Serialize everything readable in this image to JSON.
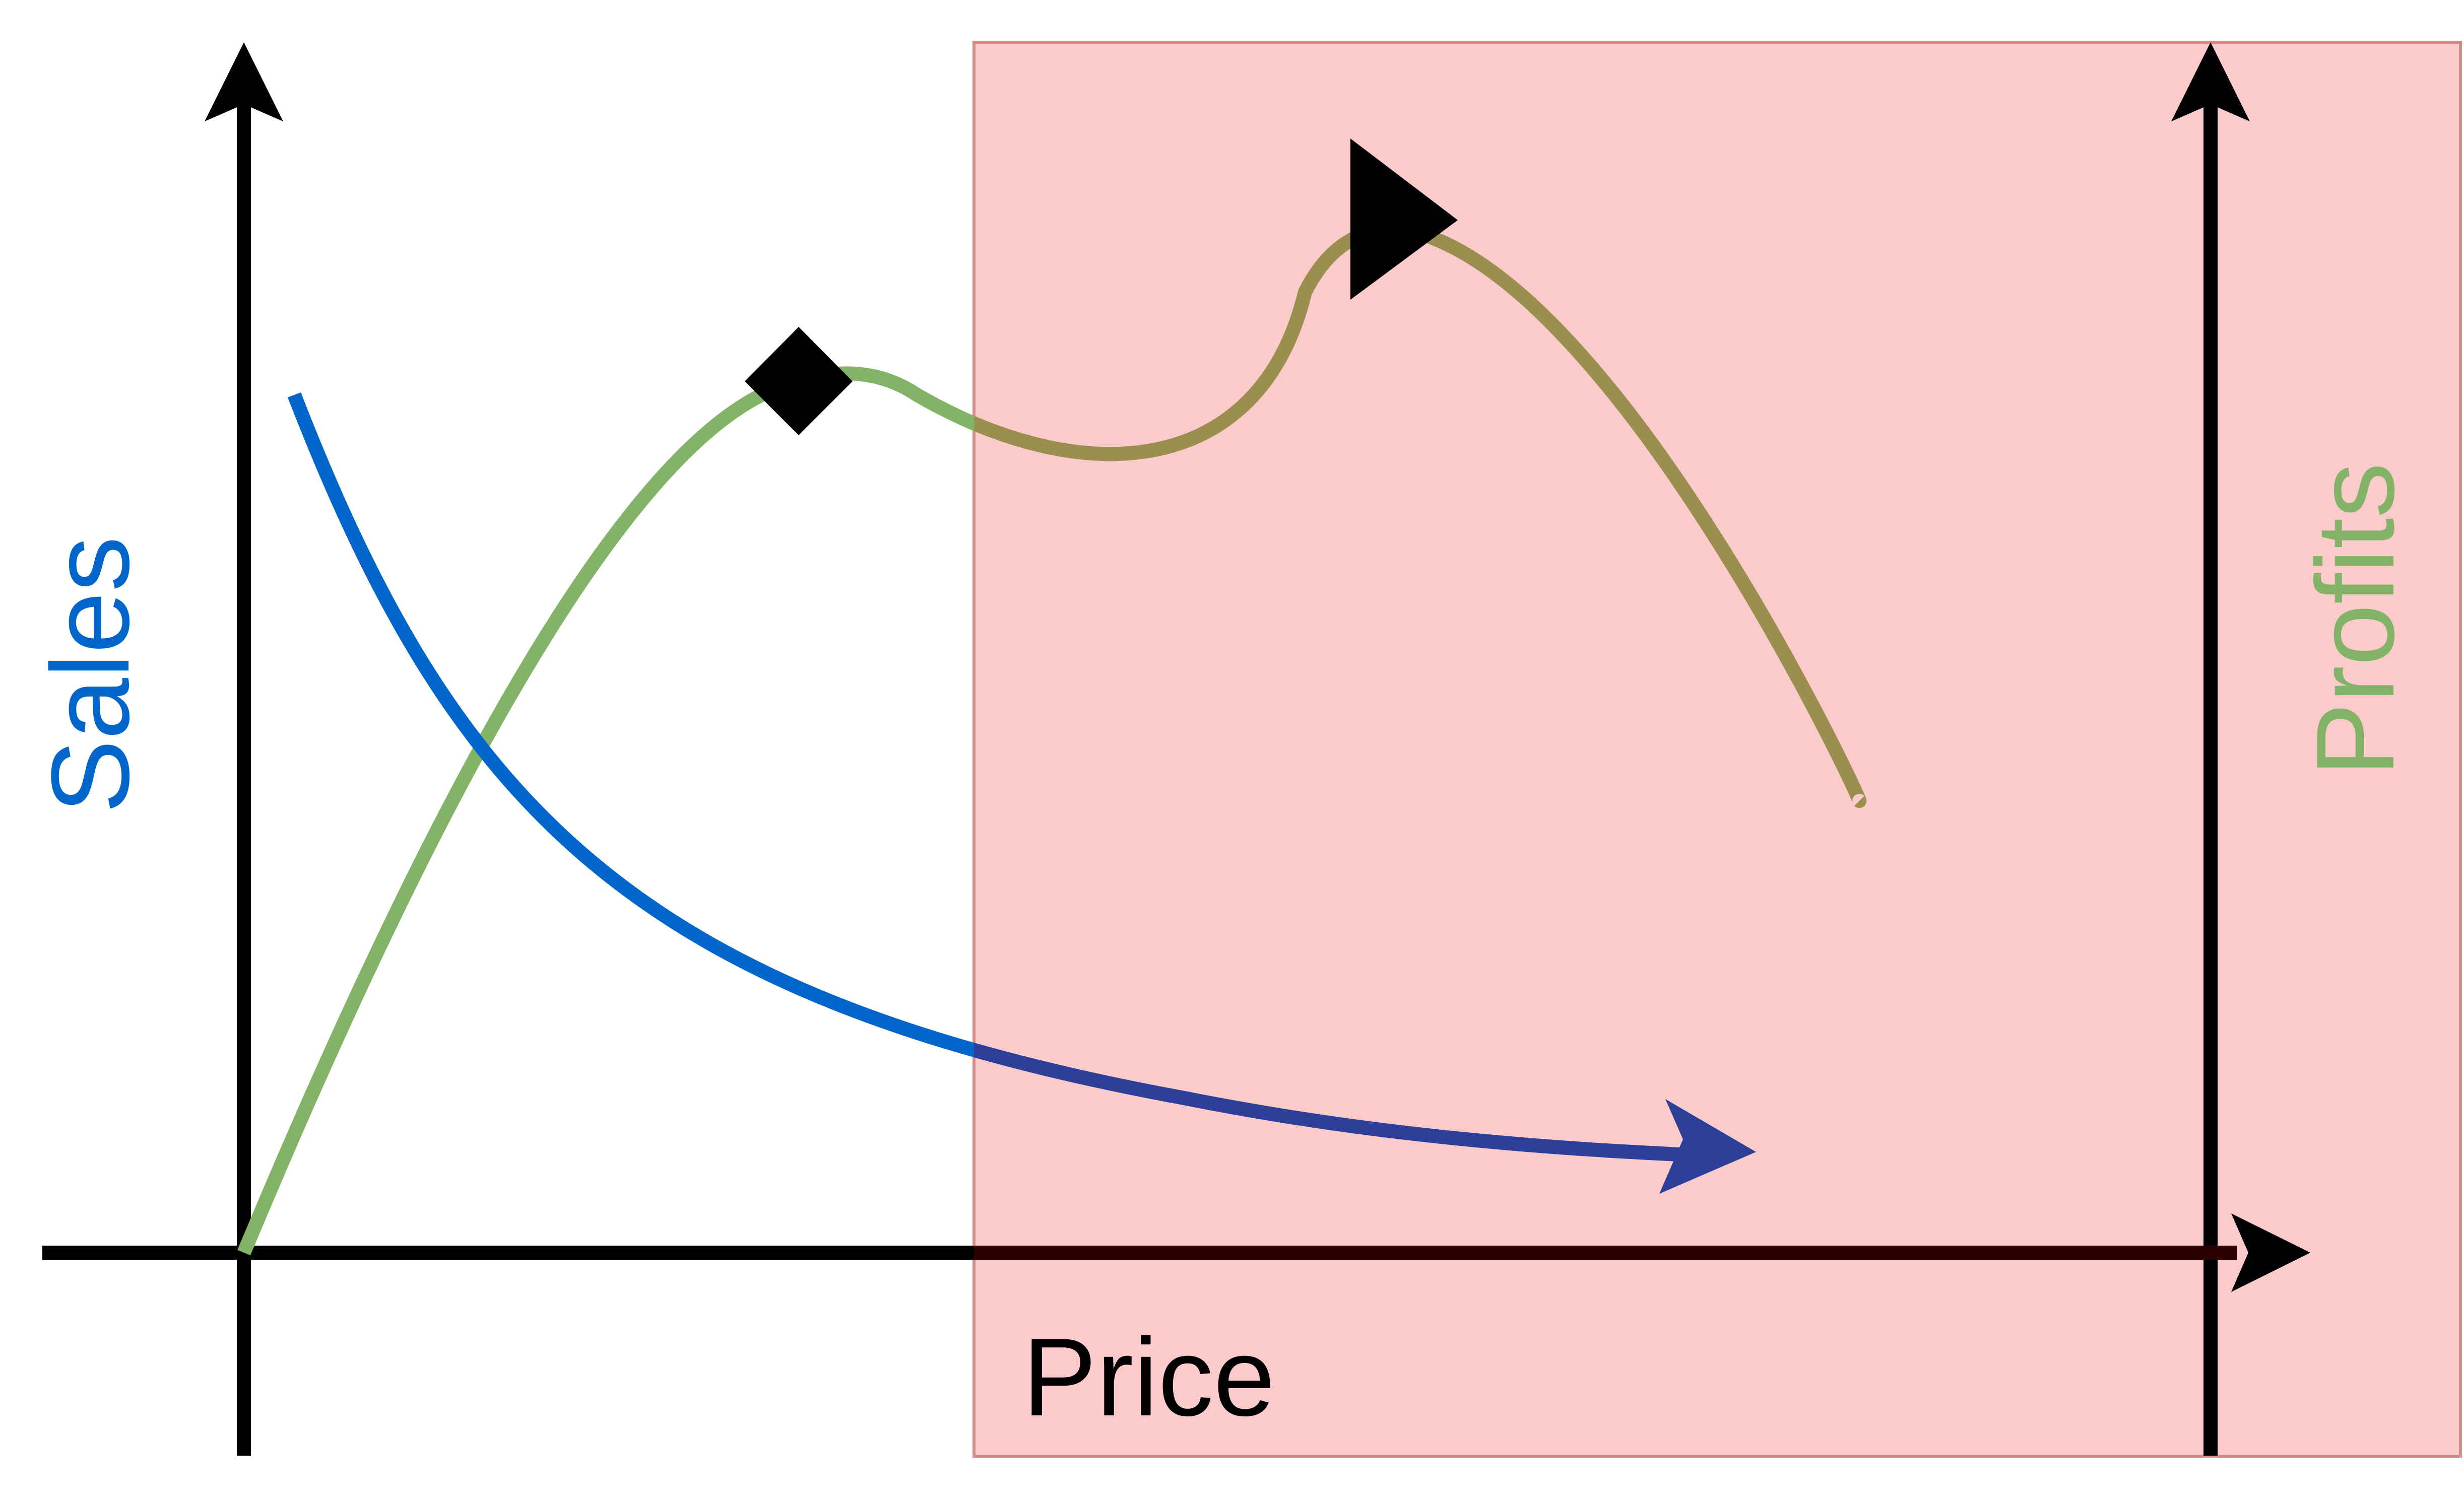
{
  "diagram": {
    "labels": {
      "sales": "Sales",
      "profits": "Profits",
      "price": "Price"
    },
    "colors": {
      "sales": "#0066CC",
      "profits": "#82B366",
      "axis": "#000000",
      "region_fill": "#F8A7A7",
      "region_stroke": "#D78C8C",
      "blend_overlay": "#2E3F9A",
      "blend_profit": "#9B8F4F"
    },
    "shapes": {
      "diamond_marker": "diamond-marker",
      "triangle_marker": "triangle-marker"
    }
  }
}
